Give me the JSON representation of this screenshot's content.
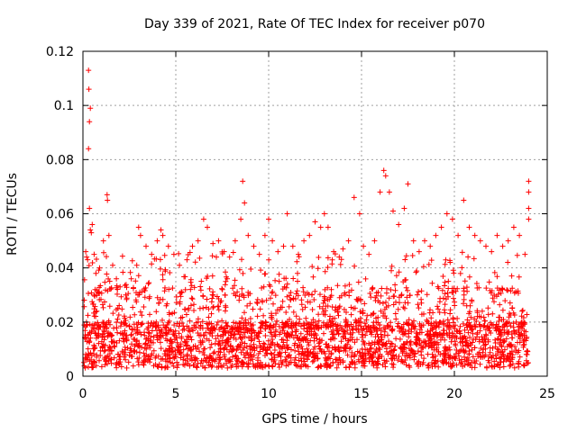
{
  "chart_data": {
    "type": "scatter",
    "title": "Day 339 of 2021, Rate Of TEC Index for receiver p070",
    "xlabel": "GPS time / hours",
    "ylabel": "ROTI / TECUs",
    "xlim": [
      0,
      25
    ],
    "ylim": [
      0,
      0.12
    ],
    "xticks": [
      0,
      5,
      10,
      15,
      20,
      25
    ],
    "yticks": [
      0,
      0.02,
      0.04,
      0.06,
      0.08,
      0.1,
      0.12
    ],
    "xtick_labels": [
      "0",
      "5",
      "10",
      "15",
      "20",
      "25"
    ],
    "ytick_labels": [
      "0",
      "0.02",
      "0.04",
      "0.06",
      "0.08",
      "0.1",
      "0.12"
    ],
    "grid": true,
    "marker": "+",
    "color": "#ff0000",
    "series": [
      {
        "points": [
          [
            0.15,
            0.046
          ],
          [
            0.2,
            0.044
          ],
          [
            0.25,
            0.043
          ],
          [
            0.3,
            0.113
          ],
          [
            0.32,
            0.106
          ],
          [
            0.35,
            0.094
          ],
          [
            0.4,
            0.099
          ],
          [
            0.3,
            0.084
          ],
          [
            0.35,
            0.062
          ],
          [
            0.4,
            0.054
          ],
          [
            0.45,
            0.053
          ],
          [
            0.5,
            0.056
          ],
          [
            0.6,
            0.045
          ],
          [
            0.7,
            0.038
          ],
          [
            0.9,
            0.04
          ],
          [
            1.1,
            0.05
          ],
          [
            1.3,
            0.067
          ],
          [
            1.32,
            0.065
          ],
          [
            1.4,
            0.052
          ],
          [
            1.6,
            0.041
          ],
          [
            1.8,
            0.036
          ],
          [
            2.0,
            0.033
          ],
          [
            2.3,
            0.03
          ],
          [
            2.6,
            0.036
          ],
          [
            2.9,
            0.041
          ],
          [
            3.0,
            0.055
          ],
          [
            3.1,
            0.052
          ],
          [
            3.4,
            0.048
          ],
          [
            3.7,
            0.045
          ],
          [
            4.0,
            0.05
          ],
          [
            4.2,
            0.054
          ],
          [
            4.3,
            0.052
          ],
          [
            4.6,
            0.048
          ],
          [
            4.9,
            0.045
          ],
          [
            5.2,
            0.041
          ],
          [
            5.6,
            0.043
          ],
          [
            5.9,
            0.048
          ],
          [
            6.2,
            0.05
          ],
          [
            6.5,
            0.058
          ],
          [
            6.7,
            0.055
          ],
          [
            7.0,
            0.049
          ],
          [
            7.3,
            0.05
          ],
          [
            7.6,
            0.046
          ],
          [
            7.9,
            0.044
          ],
          [
            8.2,
            0.05
          ],
          [
            8.5,
            0.058
          ],
          [
            8.6,
            0.072
          ],
          [
            8.7,
            0.064
          ],
          [
            8.9,
            0.052
          ],
          [
            9.2,
            0.048
          ],
          [
            9.5,
            0.045
          ],
          [
            9.8,
            0.052
          ],
          [
            10.0,
            0.058
          ],
          [
            10.2,
            0.05
          ],
          [
            10.5,
            0.046
          ],
          [
            10.8,
            0.048
          ],
          [
            11.0,
            0.06
          ],
          [
            11.3,
            0.048
          ],
          [
            11.6,
            0.045
          ],
          [
            11.9,
            0.05
          ],
          [
            12.2,
            0.052
          ],
          [
            12.5,
            0.057
          ],
          [
            12.8,
            0.055
          ],
          [
            13.0,
            0.06
          ],
          [
            13.2,
            0.055
          ],
          [
            13.5,
            0.046
          ],
          [
            13.8,
            0.044
          ],
          [
            14.0,
            0.047
          ],
          [
            14.3,
            0.05
          ],
          [
            14.6,
            0.066
          ],
          [
            14.9,
            0.06
          ],
          [
            15.1,
            0.048
          ],
          [
            15.4,
            0.045
          ],
          [
            15.7,
            0.05
          ],
          [
            16.0,
            0.068
          ],
          [
            16.2,
            0.076
          ],
          [
            16.3,
            0.074
          ],
          [
            16.5,
            0.068
          ],
          [
            16.7,
            0.061
          ],
          [
            17.0,
            0.056
          ],
          [
            17.3,
            0.062
          ],
          [
            17.5,
            0.071
          ],
          [
            17.8,
            0.05
          ],
          [
            18.1,
            0.046
          ],
          [
            18.4,
            0.05
          ],
          [
            18.7,
            0.048
          ],
          [
            19.0,
            0.052
          ],
          [
            19.3,
            0.055
          ],
          [
            19.6,
            0.06
          ],
          [
            19.9,
            0.058
          ],
          [
            20.2,
            0.052
          ],
          [
            20.5,
            0.065
          ],
          [
            20.8,
            0.055
          ],
          [
            21.1,
            0.052
          ],
          [
            21.4,
            0.05
          ],
          [
            21.7,
            0.048
          ],
          [
            22.0,
            0.046
          ],
          [
            22.3,
            0.052
          ],
          [
            22.6,
            0.048
          ],
          [
            22.9,
            0.05
          ],
          [
            23.2,
            0.055
          ],
          [
            23.5,
            0.052
          ],
          [
            23.8,
            0.045
          ],
          [
            24.0,
            0.072
          ],
          [
            24.0,
            0.068
          ],
          [
            24.0,
            0.062
          ],
          [
            24.0,
            0.058
          ]
        ]
      }
    ]
  }
}
